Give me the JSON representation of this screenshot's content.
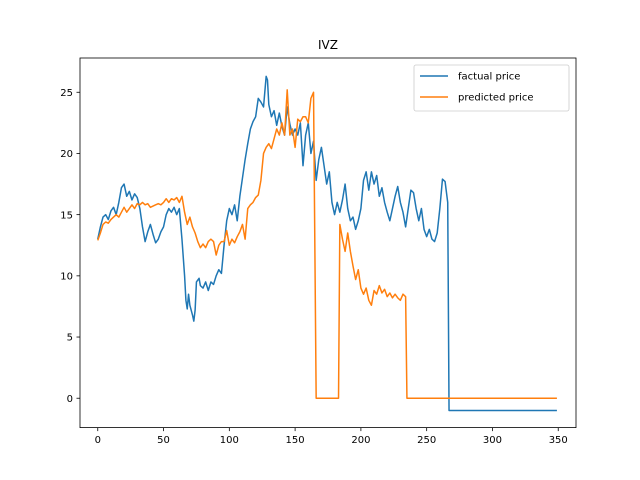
{
  "chart_data": {
    "type": "line",
    "title": "IVZ",
    "xlabel": "",
    "ylabel": "",
    "xlim": [
      -13.5,
      363.5
    ],
    "ylim": [
      -2.4,
      27.8
    ],
    "xticks": [
      0,
      50,
      100,
      150,
      200,
      250,
      300,
      350
    ],
    "yticks": [
      0,
      5,
      10,
      15,
      20,
      25
    ],
    "grid": false,
    "legend_position": "top-right",
    "series": [
      {
        "name": "factual price",
        "color": "#1f77b4",
        "points": [
          [
            0,
            13.0
          ],
          [
            2,
            14.0
          ],
          [
            4,
            14.8
          ],
          [
            6,
            15.0
          ],
          [
            8,
            14.6
          ],
          [
            10,
            15.3
          ],
          [
            12,
            15.6
          ],
          [
            14,
            15.0
          ],
          [
            16,
            16.0
          ],
          [
            18,
            17.2
          ],
          [
            20,
            17.5
          ],
          [
            22,
            16.5
          ],
          [
            24,
            16.9
          ],
          [
            26,
            16.2
          ],
          [
            28,
            16.7
          ],
          [
            30,
            16.4
          ],
          [
            32,
            15.5
          ],
          [
            34,
            14.0
          ],
          [
            36,
            12.8
          ],
          [
            38,
            13.6
          ],
          [
            40,
            14.2
          ],
          [
            42,
            13.4
          ],
          [
            44,
            12.7
          ],
          [
            46,
            13.0
          ],
          [
            48,
            13.6
          ],
          [
            50,
            14.0
          ],
          [
            52,
            15.0
          ],
          [
            54,
            15.5
          ],
          [
            56,
            15.2
          ],
          [
            58,
            15.6
          ],
          [
            60,
            15.0
          ],
          [
            62,
            15.5
          ],
          [
            64,
            13.0
          ],
          [
            66,
            10.0
          ],
          [
            67,
            8.0
          ],
          [
            68,
            7.3
          ],
          [
            69,
            8.5
          ],
          [
            70,
            7.6
          ],
          [
            72,
            6.8
          ],
          [
            73,
            6.3
          ],
          [
            74,
            7.2
          ],
          [
            75,
            9.5
          ],
          [
            77,
            9.8
          ],
          [
            78,
            9.2
          ],
          [
            80,
            9.0
          ],
          [
            82,
            9.5
          ],
          [
            84,
            8.8
          ],
          [
            86,
            9.5
          ],
          [
            88,
            9.3
          ],
          [
            90,
            10.0
          ],
          [
            92,
            10.5
          ],
          [
            94,
            10.2
          ],
          [
            96,
            12.5
          ],
          [
            98,
            14.5
          ],
          [
            100,
            15.5
          ],
          [
            102,
            15.0
          ],
          [
            104,
            15.8
          ],
          [
            106,
            14.5
          ],
          [
            108,
            16.5
          ],
          [
            110,
            18.0
          ],
          [
            112,
            19.5
          ],
          [
            114,
            20.8
          ],
          [
            116,
            22.0
          ],
          [
            118,
            22.6
          ],
          [
            120,
            23.0
          ],
          [
            122,
            24.5
          ],
          [
            124,
            24.2
          ],
          [
            126,
            23.8
          ],
          [
            128,
            26.3
          ],
          [
            129,
            26.0
          ],
          [
            130,
            24.0
          ],
          [
            132,
            23.0
          ],
          [
            134,
            23.5
          ],
          [
            136,
            22.3
          ],
          [
            138,
            23.3
          ],
          [
            140,
            22.2
          ],
          [
            142,
            21.5
          ],
          [
            144,
            23.8
          ],
          [
            146,
            22.4
          ],
          [
            148,
            21.5
          ],
          [
            150,
            22.0
          ],
          [
            152,
            21.5
          ],
          [
            154,
            22.5
          ],
          [
            156,
            19.0
          ],
          [
            158,
            21.5
          ],
          [
            160,
            22.5
          ],
          [
            162,
            20.0
          ],
          [
            164,
            21.0
          ],
          [
            166,
            17.8
          ],
          [
            168,
            19.5
          ],
          [
            170,
            20.5
          ],
          [
            172,
            19.0
          ],
          [
            174,
            17.5
          ],
          [
            176,
            18.5
          ],
          [
            178,
            16.0
          ],
          [
            180,
            15.0
          ],
          [
            182,
            16.0
          ],
          [
            184,
            15.2
          ],
          [
            186,
            16.2
          ],
          [
            188,
            17.5
          ],
          [
            190,
            15.5
          ],
          [
            192,
            14.5
          ],
          [
            194,
            14.8
          ],
          [
            196,
            13.8
          ],
          [
            198,
            14.5
          ],
          [
            200,
            15.5
          ],
          [
            202,
            17.8
          ],
          [
            204,
            18.5
          ],
          [
            206,
            17.0
          ],
          [
            208,
            18.5
          ],
          [
            210,
            17.5
          ],
          [
            212,
            18.2
          ],
          [
            214,
            16.5
          ],
          [
            216,
            17.2
          ],
          [
            218,
            16.0
          ],
          [
            220,
            15.2
          ],
          [
            222,
            14.5
          ],
          [
            224,
            15.5
          ],
          [
            226,
            16.5
          ],
          [
            228,
            17.3
          ],
          [
            230,
            16.0
          ],
          [
            232,
            15.2
          ],
          [
            234,
            14.0
          ],
          [
            236,
            15.5
          ],
          [
            238,
            17.0
          ],
          [
            240,
            16.8
          ],
          [
            242,
            15.5
          ],
          [
            244,
            14.5
          ],
          [
            246,
            15.5
          ],
          [
            248,
            13.8
          ],
          [
            250,
            13.2
          ],
          [
            252,
            13.8
          ],
          [
            254,
            13.0
          ],
          [
            256,
            12.8
          ],
          [
            258,
            13.5
          ],
          [
            260,
            15.5
          ],
          [
            262,
            17.9
          ],
          [
            264,
            17.7
          ],
          [
            266,
            16.0
          ],
          [
            267,
            -1.0
          ],
          [
            349,
            -1.0
          ]
        ]
      },
      {
        "name": "predicted price",
        "color": "#ff7f0e",
        "points": [
          [
            0,
            12.9
          ],
          [
            2,
            13.5
          ],
          [
            4,
            14.2
          ],
          [
            6,
            14.4
          ],
          [
            8,
            14.3
          ],
          [
            10,
            14.6
          ],
          [
            12,
            14.8
          ],
          [
            14,
            15.0
          ],
          [
            16,
            14.8
          ],
          [
            18,
            15.2
          ],
          [
            20,
            15.6
          ],
          [
            22,
            15.2
          ],
          [
            24,
            15.5
          ],
          [
            26,
            15.8
          ],
          [
            28,
            15.5
          ],
          [
            30,
            15.9
          ],
          [
            32,
            15.8
          ],
          [
            34,
            16.0
          ],
          [
            36,
            15.8
          ],
          [
            38,
            15.9
          ],
          [
            40,
            15.6
          ],
          [
            42,
            15.7
          ],
          [
            44,
            15.8
          ],
          [
            46,
            15.9
          ],
          [
            48,
            15.8
          ],
          [
            50,
            16.0
          ],
          [
            52,
            16.3
          ],
          [
            54,
            16.0
          ],
          [
            56,
            16.3
          ],
          [
            58,
            16.2
          ],
          [
            60,
            16.4
          ],
          [
            62,
            16.0
          ],
          [
            64,
            16.5
          ],
          [
            66,
            15.2
          ],
          [
            68,
            14.2
          ],
          [
            70,
            14.8
          ],
          [
            72,
            14.0
          ],
          [
            74,
            13.5
          ],
          [
            76,
            12.8
          ],
          [
            78,
            12.3
          ],
          [
            80,
            12.6
          ],
          [
            82,
            12.3
          ],
          [
            84,
            12.8
          ],
          [
            86,
            13.0
          ],
          [
            88,
            12.8
          ],
          [
            90,
            11.7
          ],
          [
            92,
            12.5
          ],
          [
            94,
            12.8
          ],
          [
            96,
            12.8
          ],
          [
            98,
            13.7
          ],
          [
            100,
            12.5
          ],
          [
            102,
            13.0
          ],
          [
            104,
            12.7
          ],
          [
            106,
            13.2
          ],
          [
            108,
            13.6
          ],
          [
            110,
            14.2
          ],
          [
            112,
            13.0
          ],
          [
            114,
            15.5
          ],
          [
            116,
            15.8
          ],
          [
            118,
            16.0
          ],
          [
            120,
            16.4
          ],
          [
            122,
            16.6
          ],
          [
            124,
            17.8
          ],
          [
            126,
            20.0
          ],
          [
            128,
            20.5
          ],
          [
            130,
            20.8
          ],
          [
            132,
            20.4
          ],
          [
            134,
            21.2
          ],
          [
            136,
            22.0
          ],
          [
            138,
            21.5
          ],
          [
            140,
            22.5
          ],
          [
            142,
            21.5
          ],
          [
            144,
            25.2
          ],
          [
            146,
            21.5
          ],
          [
            148,
            22.0
          ],
          [
            150,
            20.5
          ],
          [
            152,
            22.8
          ],
          [
            154,
            22.6
          ],
          [
            156,
            23.0
          ],
          [
            158,
            23.0
          ],
          [
            160,
            22.5
          ],
          [
            162,
            24.5
          ],
          [
            164,
            25.0
          ],
          [
            166,
            0.0
          ],
          [
            183,
            0.0
          ],
          [
            184,
            14.2
          ],
          [
            186,
            13.0
          ],
          [
            188,
            12.0
          ],
          [
            190,
            13.5
          ],
          [
            192,
            12.0
          ],
          [
            194,
            10.8
          ],
          [
            196,
            9.7
          ],
          [
            198,
            10.5
          ],
          [
            200,
            9.0
          ],
          [
            202,
            8.5
          ],
          [
            204,
            9.0
          ],
          [
            206,
            8.0
          ],
          [
            208,
            7.6
          ],
          [
            210,
            8.8
          ],
          [
            212,
            8.5
          ],
          [
            214,
            9.2
          ],
          [
            216,
            8.6
          ],
          [
            218,
            8.9
          ],
          [
            220,
            8.3
          ],
          [
            222,
            8.6
          ],
          [
            224,
            8.2
          ],
          [
            226,
            8.5
          ],
          [
            228,
            8.2
          ],
          [
            230,
            8.0
          ],
          [
            232,
            8.5
          ],
          [
            234,
            8.3
          ],
          [
            235,
            0.0
          ],
          [
            349,
            0.0
          ]
        ]
      }
    ]
  }
}
